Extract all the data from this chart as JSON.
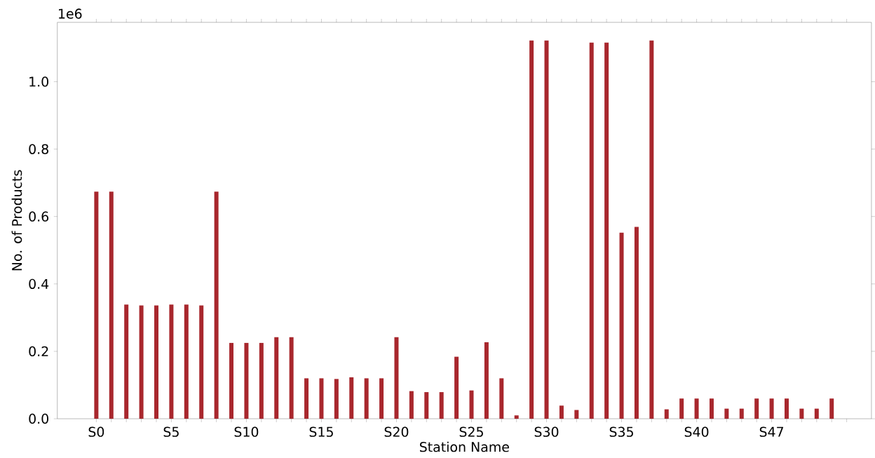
{
  "chart_data": {
    "type": "bar",
    "xlabel": "Station Name",
    "ylabel": "No. of Products",
    "annotations": [
      "1e6"
    ],
    "categories": [
      "S0",
      null,
      null,
      null,
      null,
      "S5",
      null,
      null,
      null,
      null,
      "S10",
      null,
      null,
      null,
      null,
      "S15",
      null,
      null,
      null,
      null,
      "S20",
      null,
      null,
      null,
      null,
      "S25",
      null,
      null,
      null,
      null,
      "S30",
      null,
      null,
      null,
      null,
      "S35",
      null,
      null,
      null,
      null,
      "S40",
      null,
      null,
      null,
      null,
      "S47",
      null,
      null,
      null,
      null,
      null
    ],
    "values": [
      0.674,
      0.674,
      0.339,
      0.336,
      0.336,
      0.339,
      0.339,
      0.336,
      0.674,
      0.225,
      0.225,
      0.225,
      0.242,
      0.242,
      0.12,
      0.12,
      0.118,
      0.123,
      0.12,
      0.12,
      0.242,
      0.082,
      0.079,
      0.079,
      0.184,
      0.084,
      0.227,
      0.12,
      0.01,
      1.122,
      1.122,
      0.039,
      0.026,
      1.116,
      1.116,
      0.552,
      0.569,
      1.122,
      0.028,
      0.06,
      0.06,
      0.06,
      0.03,
      0.03,
      0.06,
      0.06,
      0.06,
      0.03,
      0.03,
      0.06,
      null
    ],
    "color": "#a8272d",
    "ylim": [
      0,
      1.176
    ],
    "yticks": [
      {
        "value": 0,
        "label": "0.0"
      },
      {
        "value": 0.2,
        "label": "0.2"
      },
      {
        "value": 0.4,
        "label": "0.4"
      },
      {
        "value": 0.6,
        "label": "0.6"
      },
      {
        "value": 0.8,
        "label": "0.8"
      },
      {
        "value": 1.0,
        "label": "1.0"
      }
    ],
    "grid": false
  }
}
